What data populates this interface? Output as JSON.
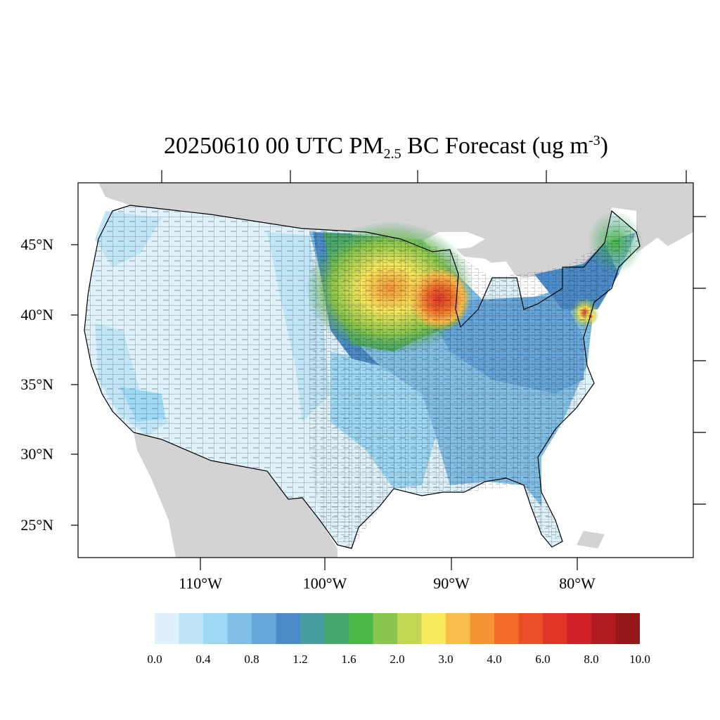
{
  "title": {
    "prefix": "20250610 00 UTC PM",
    "sub": "2.5",
    "middle": " BC Forecast (ug m",
    "sup": "-3",
    "suffix": ")"
  },
  "map": {
    "background_color": "#ffffff",
    "land_color": "#d3d3d3",
    "border_color": "#000000",
    "lat_labels": [
      "45°N",
      "40°N",
      "35°N",
      "30°N",
      "25°N"
    ],
    "lon_labels": [
      "110°W",
      "100°W",
      "90°W",
      "80°W"
    ]
  },
  "colorbar": {
    "colors": [
      "#dff2fb",
      "#c0e5f7",
      "#9ed8f4",
      "#82bfe6",
      "#66a6db",
      "#4a8bc8",
      "#4a9e9f",
      "#48a86c",
      "#4bb946",
      "#88c64d",
      "#c2d654",
      "#f7e85c",
      "#f9bd4b",
      "#f79436",
      "#f36c2a",
      "#ea4f27",
      "#df3426",
      "#cf1f27",
      "#b21b20",
      "#951919"
    ],
    "labels": [
      "0.0",
      "0.4",
      "0.8",
      "1.2",
      "1.6",
      "2.0",
      "3.0",
      "4.0",
      "6.0",
      "8.0",
      "10.0"
    ]
  }
}
